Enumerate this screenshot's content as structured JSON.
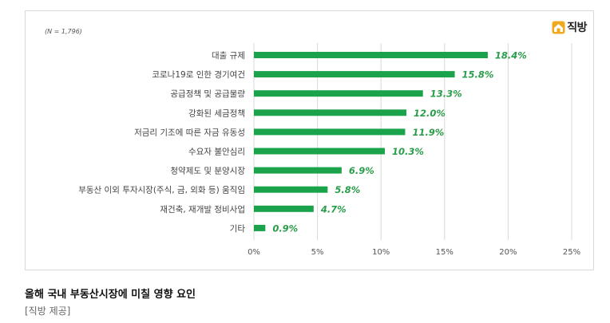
{
  "n_note": "(N = 1,796)",
  "logo": {
    "text": "직방",
    "icon": "house-logo-icon",
    "color": "#e8a020"
  },
  "caption": {
    "title": "올해 국내 부동산시장에 미칠 영향 요인",
    "source": "[직방 제공]"
  },
  "chart_data": {
    "type": "bar",
    "orientation": "horizontal",
    "categories": [
      "대출 규제",
      "코로나19로 인한 경기여건",
      "공급정책 및 공급물량",
      "강화된 세금정책",
      "저금리 기조에 따른 자금 유동성",
      "수요자 불안심리",
      "청약제도 및 분양시장",
      "부동산 이외 투자시장(주식, 금, 외화 등) 움직임",
      "재건축, 재개발 정비사업",
      "기타"
    ],
    "values": [
      18.4,
      15.8,
      13.3,
      12.0,
      11.9,
      10.3,
      6.9,
      5.8,
      4.7,
      0.9
    ],
    "data_labels": [
      "18.4%",
      "15.8%",
      "13.3%",
      "12.0%",
      "11.9%",
      "10.3%",
      "6.9%",
      "5.8%",
      "4.7%",
      "0.9%"
    ],
    "xlim": [
      0,
      25
    ],
    "xticks": [
      0,
      5,
      10,
      15,
      20,
      25
    ],
    "xtick_labels": [
      "0%",
      "5%",
      "10%",
      "15%",
      "20%",
      "25%"
    ],
    "gridlines": true,
    "bar_color": "#1aa34a",
    "label_color": "#2a9d4a"
  }
}
